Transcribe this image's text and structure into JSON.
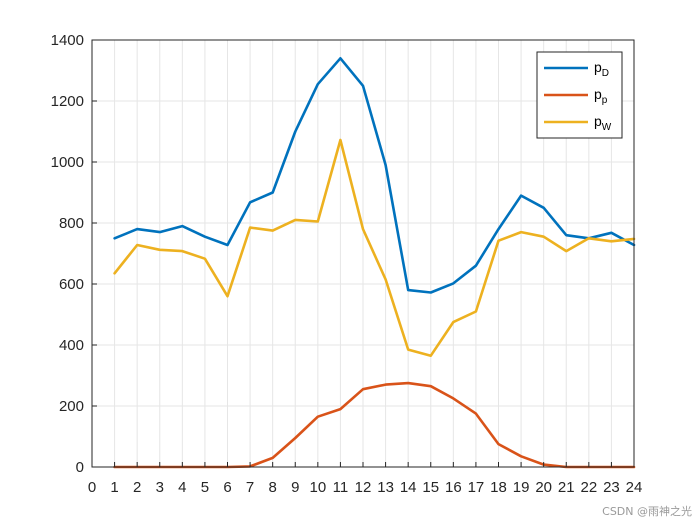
{
  "chart_data": {
    "type": "line",
    "title": "",
    "xlabel": "",
    "ylabel": "",
    "xlim": [
      0,
      24
    ],
    "ylim": [
      0,
      1400
    ],
    "xticks": [
      "0",
      "1",
      "2",
      "3",
      "4",
      "5",
      "6",
      "7",
      "8",
      "9",
      "10",
      "11",
      "12",
      "13",
      "14",
      "15",
      "16",
      "17",
      "18",
      "19",
      "20",
      "21",
      "22",
      "23",
      "24"
    ],
    "yticks": [
      "0",
      "200",
      "400",
      "600",
      "800",
      "1000",
      "1200",
      "1400"
    ],
    "grid": true,
    "legend_position": "top-right",
    "x": [
      1,
      2,
      3,
      4,
      5,
      6,
      7,
      8,
      9,
      10,
      11,
      12,
      13,
      14,
      15,
      16,
      17,
      18,
      19,
      20,
      21,
      22,
      23,
      24
    ],
    "series": [
      {
        "name": "p",
        "subscript": "D",
        "color": "#0072BD",
        "values": [
          750,
          780,
          770,
          790,
          755,
          728,
          868,
          900,
          1100,
          1255,
          1340,
          1250,
          990,
          580,
          572,
          602,
          660,
          780,
          890,
          850,
          760,
          750,
          768,
          728
        ]
      },
      {
        "name": "p",
        "subscript": "p",
        "color": "#D95319",
        "values": [
          0,
          0,
          0,
          0,
          0,
          0,
          2,
          30,
          95,
          165,
          190,
          255,
          270,
          275,
          265,
          225,
          175,
          75,
          35,
          8,
          0,
          0,
          0,
          0
        ]
      },
      {
        "name": "p",
        "subscript": "W",
        "color": "#EDB120",
        "values": [
          635,
          728,
          712,
          708,
          683,
          560,
          785,
          775,
          810,
          805,
          1072,
          780,
          615,
          385,
          365,
          475,
          510,
          742,
          770,
          755,
          708,
          750,
          740,
          748
        ]
      }
    ]
  },
  "watermark": "CSDN @雨神之光"
}
